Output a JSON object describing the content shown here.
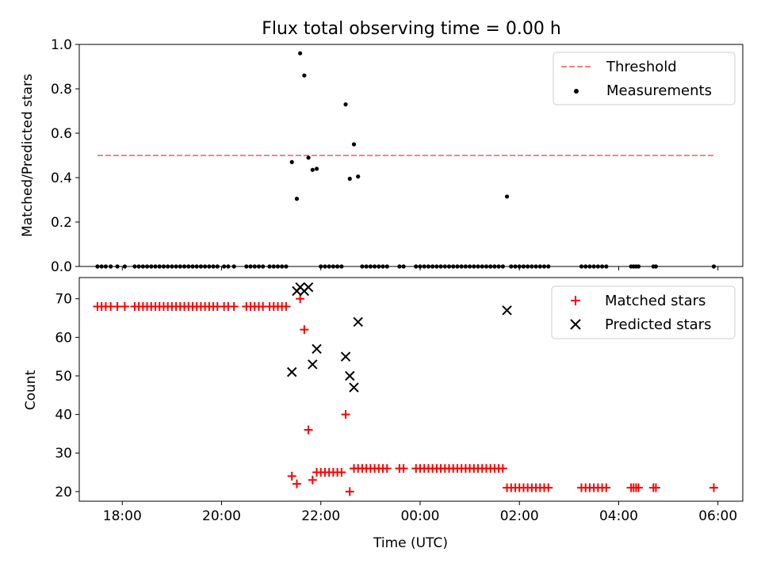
{
  "chart_data": [
    {
      "type": "scatter",
      "title": "Flux total observing time = 0.00 h",
      "xlabel": "",
      "ylabel": "Matched/Predicted stars",
      "xlim": [
        "17:08",
        "06:30"
      ],
      "ylim": [
        0.0,
        1.0
      ],
      "x_ticks": [
        "18:00",
        "20:00",
        "22:00",
        "00:00",
        "02:00",
        "04:00",
        "06:00"
      ],
      "y_ticks": [
        "0.0",
        "0.2",
        "0.4",
        "0.6",
        "0.8",
        "1.0"
      ],
      "legend": {
        "position": "upper right",
        "entries": [
          "Threshold",
          "Measurements"
        ]
      },
      "grid": false,
      "threshold": {
        "name": "Threshold",
        "y": 0.5,
        "x_start": "17:30",
        "x_end": "05:55",
        "color": "#ff8080",
        "style": "dashed"
      },
      "series": [
        {
          "name": "Measurements",
          "color": "#000000",
          "marker": "dot",
          "points": [
            [
              "17:30",
              0
            ],
            [
              "17:35",
              0
            ],
            [
              "17:40",
              0
            ],
            [
              "17:46",
              0
            ],
            [
              "17:54",
              0
            ],
            [
              "18:03",
              0
            ],
            [
              "18:15",
              0
            ],
            [
              "18:20",
              0
            ],
            [
              "18:25",
              0
            ],
            [
              "18:30",
              0
            ],
            [
              "18:35",
              0
            ],
            [
              "18:40",
              0
            ],
            [
              "18:45",
              0
            ],
            [
              "18:50",
              0
            ],
            [
              "18:55",
              0
            ],
            [
              "19:00",
              0
            ],
            [
              "19:05",
              0
            ],
            [
              "19:10",
              0
            ],
            [
              "19:15",
              0
            ],
            [
              "19:20",
              0
            ],
            [
              "19:25",
              0
            ],
            [
              "19:30",
              0
            ],
            [
              "19:35",
              0
            ],
            [
              "19:40",
              0
            ],
            [
              "19:45",
              0
            ],
            [
              "19:50",
              0
            ],
            [
              "19:55",
              0
            ],
            [
              "20:03",
              0
            ],
            [
              "20:08",
              0
            ],
            [
              "20:15",
              0
            ],
            [
              "20:30",
              0
            ],
            [
              "20:35",
              0
            ],
            [
              "20:40",
              0
            ],
            [
              "20:45",
              0
            ],
            [
              "20:50",
              0
            ],
            [
              "20:58",
              0
            ],
            [
              "21:03",
              0
            ],
            [
              "21:08",
              0
            ],
            [
              "21:13",
              0
            ],
            [
              "21:18",
              0
            ],
            [
              "21:25",
              0.47
            ],
            [
              "21:31",
              0.305
            ],
            [
              "21:35",
              0.96
            ],
            [
              "21:40",
              0.86
            ],
            [
              "21:45",
              0.49
            ],
            [
              "21:50",
              0.435
            ],
            [
              "21:55",
              0.44
            ],
            [
              "22:00",
              0
            ],
            [
              "22:05",
              0
            ],
            [
              "22:10",
              0
            ],
            [
              "22:15",
              0
            ],
            [
              "22:20",
              0
            ],
            [
              "22:25",
              0
            ],
            [
              "22:30",
              0.73
            ],
            [
              "22:35",
              0.395
            ],
            [
              "22:40",
              0.55
            ],
            [
              "22:45",
              0.405
            ],
            [
              "22:50",
              0
            ],
            [
              "22:55",
              0
            ],
            [
              "23:00",
              0
            ],
            [
              "23:05",
              0
            ],
            [
              "23:10",
              0
            ],
            [
              "23:15",
              0
            ],
            [
              "23:20",
              0
            ],
            [
              "23:35",
              0
            ],
            [
              "23:40",
              0
            ],
            [
              "23:55",
              0
            ],
            [
              "00:00",
              0
            ],
            [
              "00:05",
              0
            ],
            [
              "00:10",
              0
            ],
            [
              "00:15",
              0
            ],
            [
              "00:20",
              0
            ],
            [
              "00:25",
              0
            ],
            [
              "00:30",
              0
            ],
            [
              "00:35",
              0
            ],
            [
              "00:40",
              0
            ],
            [
              "00:45",
              0
            ],
            [
              "00:50",
              0
            ],
            [
              "00:55",
              0
            ],
            [
              "01:00",
              0
            ],
            [
              "01:05",
              0
            ],
            [
              "01:10",
              0
            ],
            [
              "01:15",
              0
            ],
            [
              "01:20",
              0
            ],
            [
              "01:25",
              0
            ],
            [
              "01:30",
              0
            ],
            [
              "01:35",
              0
            ],
            [
              "01:40",
              0
            ],
            [
              "01:45",
              0.315
            ],
            [
              "01:50",
              0
            ],
            [
              "01:55",
              0
            ],
            [
              "02:00",
              0
            ],
            [
              "02:05",
              0
            ],
            [
              "02:10",
              0
            ],
            [
              "02:15",
              0
            ],
            [
              "02:20",
              0
            ],
            [
              "02:25",
              0
            ],
            [
              "02:30",
              0
            ],
            [
              "02:35",
              0
            ],
            [
              "03:15",
              0
            ],
            [
              "03:20",
              0
            ],
            [
              "03:25",
              0
            ],
            [
              "03:30",
              0
            ],
            [
              "03:35",
              0
            ],
            [
              "03:40",
              0
            ],
            [
              "03:45",
              0
            ],
            [
              "04:15",
              0
            ],
            [
              "04:18",
              0
            ],
            [
              "04:21",
              0
            ],
            [
              "04:24",
              0
            ],
            [
              "04:42",
              0
            ],
            [
              "04:45",
              0
            ],
            [
              "05:55",
              0
            ]
          ]
        }
      ]
    },
    {
      "type": "scatter",
      "title": "",
      "xlabel": "Time (UTC)",
      "ylabel": "Count",
      "xlim": [
        "17:08",
        "06:30"
      ],
      "ylim": [
        17.5,
        75.5
      ],
      "x_ticks": [
        "18:00",
        "20:00",
        "22:00",
        "00:00",
        "02:00",
        "04:00",
        "06:00"
      ],
      "y_ticks": [
        "20",
        "30",
        "40",
        "50",
        "60",
        "70"
      ],
      "legend": {
        "position": "upper right",
        "entries": [
          "Matched stars",
          "Predicted stars"
        ]
      },
      "grid": false,
      "series": [
        {
          "name": "Matched stars",
          "color": "#ff0000",
          "marker": "plus",
          "points": [
            [
              "17:30",
              68
            ],
            [
              "17:35",
              68
            ],
            [
              "17:40",
              68
            ],
            [
              "17:46",
              68
            ],
            [
              "17:54",
              68
            ],
            [
              "18:03",
              68
            ],
            [
              "18:15",
              68
            ],
            [
              "18:20",
              68
            ],
            [
              "18:25",
              68
            ],
            [
              "18:30",
              68
            ],
            [
              "18:35",
              68
            ],
            [
              "18:40",
              68
            ],
            [
              "18:45",
              68
            ],
            [
              "18:50",
              68
            ],
            [
              "18:55",
              68
            ],
            [
              "19:00",
              68
            ],
            [
              "19:05",
              68
            ],
            [
              "19:10",
              68
            ],
            [
              "19:15",
              68
            ],
            [
              "19:20",
              68
            ],
            [
              "19:25",
              68
            ],
            [
              "19:30",
              68
            ],
            [
              "19:35",
              68
            ],
            [
              "19:40",
              68
            ],
            [
              "19:45",
              68
            ],
            [
              "19:50",
              68
            ],
            [
              "19:55",
              68
            ],
            [
              "20:03",
              68
            ],
            [
              "20:08",
              68
            ],
            [
              "20:15",
              68
            ],
            [
              "20:30",
              68
            ],
            [
              "20:35",
              68
            ],
            [
              "20:40",
              68
            ],
            [
              "20:45",
              68
            ],
            [
              "20:50",
              68
            ],
            [
              "20:58",
              68
            ],
            [
              "21:03",
              68
            ],
            [
              "21:08",
              68
            ],
            [
              "21:13",
              68
            ],
            [
              "21:18",
              68
            ],
            [
              "21:25",
              24
            ],
            [
              "21:31",
              22
            ],
            [
              "21:35",
              70
            ],
            [
              "21:40",
              62
            ],
            [
              "21:45",
              36
            ],
            [
              "21:50",
              23
            ],
            [
              "21:55",
              25
            ],
            [
              "22:00",
              25
            ],
            [
              "22:05",
              25
            ],
            [
              "22:10",
              25
            ],
            [
              "22:15",
              25
            ],
            [
              "22:20",
              25
            ],
            [
              "22:25",
              25
            ],
            [
              "22:30",
              40
            ],
            [
              "22:35",
              20
            ],
            [
              "22:40",
              26
            ],
            [
              "22:45",
              26
            ],
            [
              "22:50",
              26
            ],
            [
              "22:55",
              26
            ],
            [
              "23:00",
              26
            ],
            [
              "23:05",
              26
            ],
            [
              "23:10",
              26
            ],
            [
              "23:15",
              26
            ],
            [
              "23:20",
              26
            ],
            [
              "23:35",
              26
            ],
            [
              "23:40",
              26
            ],
            [
              "23:55",
              26
            ],
            [
              "00:00",
              26
            ],
            [
              "00:05",
              26
            ],
            [
              "00:10",
              26
            ],
            [
              "00:15",
              26
            ],
            [
              "00:20",
              26
            ],
            [
              "00:25",
              26
            ],
            [
              "00:30",
              26
            ],
            [
              "00:35",
              26
            ],
            [
              "00:40",
              26
            ],
            [
              "00:45",
              26
            ],
            [
              "00:50",
              26
            ],
            [
              "00:55",
              26
            ],
            [
              "01:00",
              26
            ],
            [
              "01:05",
              26
            ],
            [
              "01:10",
              26
            ],
            [
              "01:15",
              26
            ],
            [
              "01:20",
              26
            ],
            [
              "01:25",
              26
            ],
            [
              "01:30",
              26
            ],
            [
              "01:35",
              26
            ],
            [
              "01:40",
              26
            ],
            [
              "01:45",
              21
            ],
            [
              "01:50",
              21
            ],
            [
              "01:55",
              21
            ],
            [
              "02:00",
              21
            ],
            [
              "02:05",
              21
            ],
            [
              "02:10",
              21
            ],
            [
              "02:15",
              21
            ],
            [
              "02:20",
              21
            ],
            [
              "02:25",
              21
            ],
            [
              "02:30",
              21
            ],
            [
              "02:35",
              21
            ],
            [
              "03:15",
              21
            ],
            [
              "03:20",
              21
            ],
            [
              "03:25",
              21
            ],
            [
              "03:30",
              21
            ],
            [
              "03:35",
              21
            ],
            [
              "03:40",
              21
            ],
            [
              "03:45",
              21
            ],
            [
              "04:15",
              21
            ],
            [
              "04:18",
              21
            ],
            [
              "04:21",
              21
            ],
            [
              "04:24",
              21
            ],
            [
              "04:42",
              21
            ],
            [
              "04:45",
              21
            ],
            [
              "05:55",
              21
            ]
          ]
        },
        {
          "name": "Predicted stars",
          "color": "#000000",
          "marker": "x",
          "points": [
            [
              "21:25",
              51
            ],
            [
              "21:31",
              72
            ],
            [
              "21:35",
              73
            ],
            [
              "21:40",
              72
            ],
            [
              "21:45",
              73
            ],
            [
              "21:50",
              53
            ],
            [
              "21:55",
              57
            ],
            [
              "22:30",
              55
            ],
            [
              "22:35",
              50
            ],
            [
              "22:40",
              47
            ],
            [
              "22:45",
              64
            ],
            [
              "01:45",
              67
            ]
          ]
        }
      ]
    }
  ]
}
